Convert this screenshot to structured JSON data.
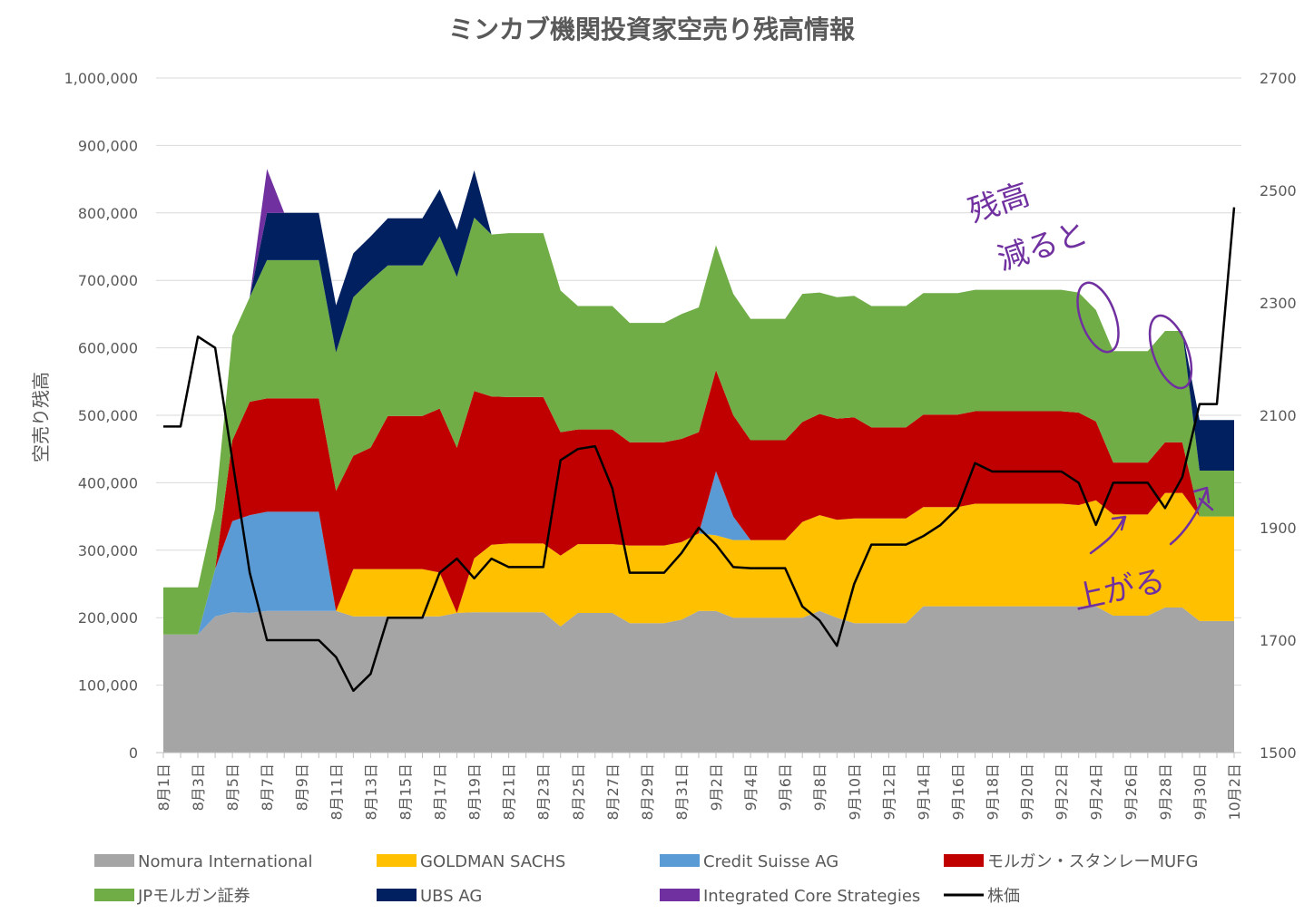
{
  "chart_data": {
    "type": "area",
    "title": "ミンカブ機関投資家空売り残高情報",
    "ylabel": "空売り残高",
    "ylim": [
      0,
      1000000
    ],
    "y2lim": [
      1500,
      2700
    ],
    "yticks": [
      "0",
      "100,000",
      "200,000",
      "300,000",
      "400,000",
      "500,000",
      "600,000",
      "700,000",
      "800,000",
      "900,000",
      "1,000,000"
    ],
    "y2ticks": [
      "1500",
      "1700",
      "1900",
      "2100",
      "2300",
      "2500",
      "2700"
    ],
    "categories": [
      "8月1日",
      "8月2日",
      "8月3日",
      "8月4日",
      "8月5日",
      "8月6日",
      "8月7日",
      "8月8日",
      "8月9日",
      "8月10日",
      "8月11日",
      "8月12日",
      "8月13日",
      "8月14日",
      "8月15日",
      "8月16日",
      "8月17日",
      "8月18日",
      "8月19日",
      "8月20日",
      "8月21日",
      "8月22日",
      "8月23日",
      "8月24日",
      "8月25日",
      "8月26日",
      "8月27日",
      "8月28日",
      "8月29日",
      "8月30日",
      "8月31日",
      "9月1日",
      "9月2日",
      "9月3日",
      "9月4日",
      "9月5日",
      "9月6日",
      "9月7日",
      "9月8日",
      "9月9日",
      "9月10日",
      "9月11日",
      "9月12日",
      "9月13日",
      "9月14日",
      "9月15日",
      "9月16日",
      "9月17日",
      "9月18日",
      "9月19日",
      "9月20日",
      "9月21日",
      "9月22日",
      "9月23日",
      "9月24日",
      "9月25日",
      "9月26日",
      "9月27日",
      "9月28日",
      "9月29日",
      "9月30日",
      "10月1日",
      "10月2日"
    ],
    "xticks_shown": [
      "8月1日",
      "8月3日",
      "8月5日",
      "8月7日",
      "8月9日",
      "8月11日",
      "8月13日",
      "8月15日",
      "8月17日",
      "8月19日",
      "8月21日",
      "8月23日",
      "8月25日",
      "8月27日",
      "8月29日",
      "8月31日",
      "9月2日",
      "9月4日",
      "9月6日",
      "9月8日",
      "9月10日",
      "9月12日",
      "9月14日",
      "9月16日",
      "9月18日",
      "9月20日",
      "9月22日",
      "9月24日",
      "9月26日",
      "9月28日",
      "9月30日",
      "10月2日"
    ],
    "series": [
      {
        "name": "Nomura International",
        "color": "#a5a5a5",
        "values": [
          175000,
          175000,
          175000,
          202000,
          208000,
          207000,
          210000,
          210000,
          210000,
          210000,
          210000,
          202000,
          202000,
          202000,
          202000,
          202000,
          202000,
          207000,
          208000,
          208000,
          208000,
          208000,
          208000,
          187000,
          207000,
          207000,
          207000,
          192000,
          192000,
          192000,
          197000,
          210000,
          210000,
          200000,
          200000,
          200000,
          200000,
          200000,
          210000,
          200000,
          192000,
          192000,
          192000,
          192000,
          217000,
          217000,
          217000,
          217000,
          217000,
          217000,
          217000,
          217000,
          217000,
          217000,
          217000,
          203000,
          203000,
          203000,
          215000,
          215000,
          195000,
          195000,
          195000
        ]
      },
      {
        "name": "GOLDMAN SACHS",
        "color": "#ffc000",
        "values": [
          0,
          0,
          0,
          0,
          0,
          0,
          0,
          0,
          0,
          0,
          0,
          70000,
          70000,
          70000,
          70000,
          70000,
          65000,
          0,
          80000,
          100000,
          102000,
          102000,
          102000,
          105000,
          102000,
          102000,
          102000,
          115000,
          115000,
          115000,
          115000,
          115000,
          112000,
          115000,
          115000,
          115000,
          115000,
          142000,
          142000,
          145000,
          155000,
          155000,
          155000,
          155000,
          147000,
          147000,
          147000,
          152000,
          152000,
          152000,
          152000,
          152000,
          152000,
          150000,
          157000,
          150000,
          150000,
          150000,
          170000,
          170000,
          155000,
          155000,
          155000
        ]
      },
      {
        "name": "Credit Suisse AG",
        "color": "#5b9bd5",
        "values": [
          0,
          0,
          0,
          70000,
          135000,
          145000,
          147000,
          147000,
          147000,
          147000,
          0,
          0,
          0,
          0,
          0,
          0,
          0,
          0,
          0,
          0,
          0,
          0,
          0,
          0,
          0,
          0,
          0,
          0,
          0,
          0,
          0,
          0,
          95000,
          35000,
          0,
          0,
          0,
          0,
          0,
          0,
          0,
          0,
          0,
          0,
          0,
          0,
          0,
          0,
          0,
          0,
          0,
          0,
          0,
          0,
          0,
          0,
          0,
          0,
          0,
          0,
          0,
          0,
          0
        ]
      },
      {
        "name": "モルガン・スタンレーMUFG",
        "color": "#c00000",
        "values": [
          0,
          0,
          0,
          0,
          120000,
          168000,
          168000,
          168000,
          168000,
          168000,
          178000,
          168000,
          180000,
          227000,
          227000,
          227000,
          243000,
          245000,
          248000,
          220000,
          217000,
          217000,
          217000,
          183000,
          170000,
          170000,
          170000,
          153000,
          153000,
          153000,
          153000,
          150000,
          150000,
          150000,
          148000,
          148000,
          148000,
          148000,
          150000,
          150000,
          150000,
          135000,
          135000,
          135000,
          137000,
          137000,
          137000,
          137000,
          137000,
          137000,
          137000,
          137000,
          137000,
          137000,
          117000,
          77000,
          77000,
          77000,
          75000,
          75000,
          0,
          0,
          0
        ]
      },
      {
        "name": "JPモルガン証券",
        "color": "#70ad47",
        "values": [
          70000,
          70000,
          70000,
          90000,
          155000,
          155000,
          205000,
          205000,
          205000,
          205000,
          205000,
          235000,
          248000,
          223000,
          223000,
          223000,
          255000,
          253000,
          257000,
          240000,
          243000,
          243000,
          243000,
          210000,
          183000,
          183000,
          183000,
          177000,
          177000,
          177000,
          185000,
          185000,
          185000,
          180000,
          180000,
          180000,
          180000,
          190000,
          180000,
          180000,
          180000,
          180000,
          180000,
          180000,
          180000,
          180000,
          180000,
          180000,
          180000,
          180000,
          180000,
          180000,
          180000,
          178000,
          165000,
          165000,
          165000,
          165000,
          165000,
          165000,
          68000,
          68000,
          68000
        ]
      },
      {
        "name": "UBS AG",
        "color": "#002060",
        "values": [
          0,
          0,
          0,
          0,
          0,
          0,
          70000,
          70000,
          70000,
          70000,
          70000,
          65000,
          65000,
          70000,
          70000,
          70000,
          70000,
          70000,
          70000,
          0,
          0,
          0,
          0,
          0,
          0,
          0,
          0,
          0,
          0,
          0,
          0,
          0,
          0,
          0,
          0,
          0,
          0,
          0,
          0,
          0,
          0,
          0,
          0,
          0,
          0,
          0,
          0,
          0,
          0,
          0,
          0,
          0,
          0,
          0,
          0,
          0,
          0,
          0,
          0,
          0,
          75000,
          75000,
          75000
        ]
      },
      {
        "name": "Integrated Core Strategies",
        "color": "#7030a0",
        "values": [
          0,
          0,
          0,
          0,
          0,
          0,
          65000,
          0,
          0,
          0,
          0,
          0,
          0,
          0,
          0,
          0,
          0,
          0,
          0,
          0,
          0,
          0,
          0,
          0,
          0,
          0,
          0,
          0,
          0,
          0,
          0,
          0,
          0,
          0,
          0,
          0,
          0,
          0,
          0,
          0,
          0,
          0,
          0,
          0,
          0,
          0,
          0,
          0,
          0,
          0,
          0,
          0,
          0,
          0,
          0,
          0,
          0,
          0,
          0,
          0,
          0,
          0,
          0
        ]
      }
    ],
    "line_series": {
      "name": "株価",
      "color": "#000000",
      "axis": "secondary",
      "values": [
        2080,
        2080,
        2240,
        2220,
        2020,
        1820,
        1700,
        1700,
        1700,
        1700,
        1670,
        1610,
        1640,
        1740,
        1740,
        1740,
        1820,
        1845,
        1810,
        1845,
        1830,
        1830,
        1830,
        2020,
        2040,
        2045,
        1970,
        1820,
        1820,
        1820,
        1855,
        1900,
        1870,
        1830,
        1828,
        1828,
        1828,
        1760,
        1735,
        1690,
        1800,
        1870,
        1870,
        1870,
        1885,
        1905,
        1935,
        2015,
        2000,
        2000,
        2000,
        2000,
        2000,
        1980,
        1905,
        1980,
        1980,
        1980,
        1935,
        1990,
        2120,
        2120,
        2470
      ]
    },
    "legend_position": "bottom",
    "grid": true
  },
  "annotations": {
    "top_text_1": "残高",
    "top_text_2": "減ると",
    "bottom_text": "上がる"
  }
}
